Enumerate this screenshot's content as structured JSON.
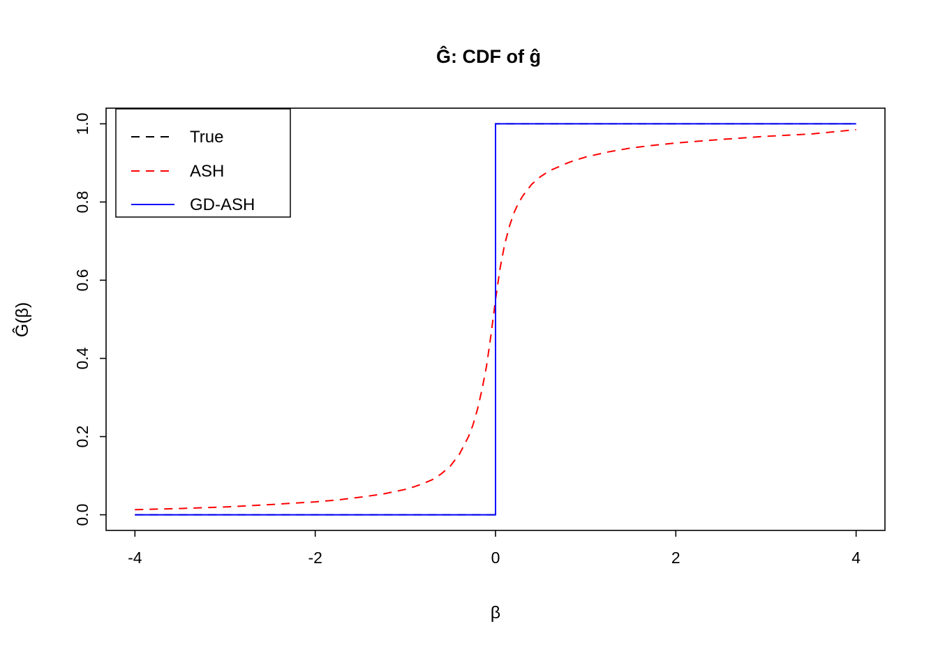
{
  "figure": {
    "background": "#ffffff"
  },
  "chart_data": {
    "type": "line",
    "title": "Ĝ: CDF of ĝ",
    "xlabel": "β",
    "ylabel": "Ĝ(β)",
    "xlim": [
      -4.32,
      4.32
    ],
    "ylim": [
      -0.04,
      1.04
    ],
    "xticks": [
      -4,
      -2,
      0,
      2,
      4
    ],
    "xtick_labels": [
      "-4",
      "-2",
      "0",
      "2",
      "4"
    ],
    "yticks": [
      0.0,
      0.2,
      0.4,
      0.6,
      0.8,
      1.0
    ],
    "ytick_labels": [
      "0.0",
      "0.2",
      "0.4",
      "0.6",
      "0.8",
      "1.0"
    ],
    "grid": false,
    "legend_position": "top-left",
    "colors": {
      "true": "#000000",
      "ash": "#ff0000",
      "gd_ash": "#0000ff",
      "axis": "#000000"
    },
    "series": [
      {
        "name": "True",
        "color": "#000000",
        "style": "dashed",
        "width": 2,
        "x": [
          -4,
          0,
          0,
          4
        ],
        "y": [
          0,
          0,
          1,
          1
        ]
      },
      {
        "name": "ASH",
        "color": "#ff0000",
        "style": "dashed",
        "width": 2,
        "x": [
          -4,
          -3.5,
          -3,
          -2.5,
          -2,
          -1.75,
          -1.5,
          -1.25,
          -1,
          -0.9,
          -0.8,
          -0.7,
          -0.6,
          -0.5,
          -0.4,
          -0.3,
          -0.25,
          -0.2,
          -0.15,
          -0.1,
          -0.05,
          0,
          0.05,
          0.1,
          0.15,
          0.2,
          0.25,
          0.3,
          0.4,
          0.5,
          0.6,
          0.7,
          0.8,
          0.9,
          1,
          1.25,
          1.5,
          1.75,
          2,
          2.5,
          3,
          3.5,
          4
        ],
        "y": [
          0.013,
          0.016,
          0.02,
          0.026,
          0.033,
          0.038,
          0.045,
          0.053,
          0.065,
          0.072,
          0.08,
          0.09,
          0.105,
          0.125,
          0.155,
          0.2,
          0.23,
          0.27,
          0.32,
          0.38,
          0.46,
          0.55,
          0.63,
          0.69,
          0.735,
          0.77,
          0.795,
          0.815,
          0.845,
          0.865,
          0.88,
          0.89,
          0.9,
          0.908,
          0.915,
          0.928,
          0.938,
          0.945,
          0.951,
          0.96,
          0.968,
          0.974,
          0.985
        ]
      },
      {
        "name": "GD-ASH",
        "color": "#0000ff",
        "style": "solid",
        "width": 2,
        "x": [
          -4,
          0,
          0,
          4
        ],
        "y": [
          0,
          0,
          1,
          1
        ]
      }
    ]
  }
}
